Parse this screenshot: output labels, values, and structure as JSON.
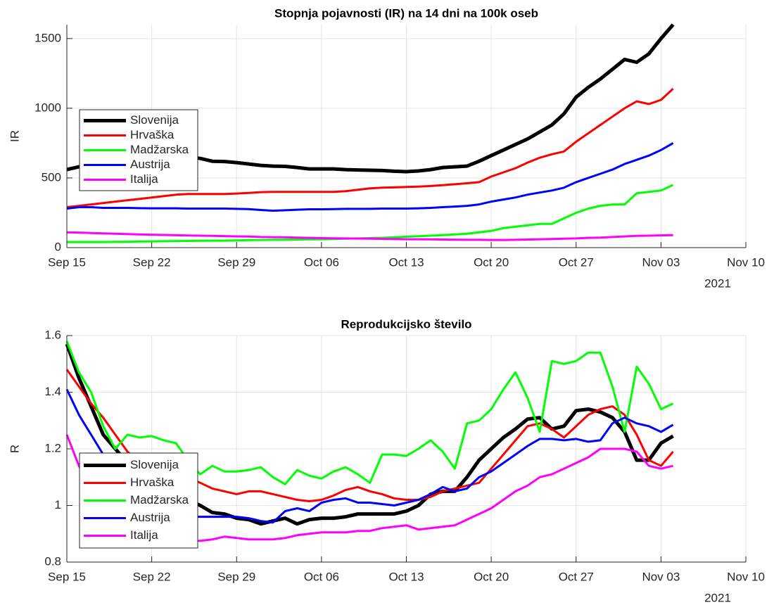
{
  "chart_data": [
    {
      "type": "line",
      "title": "Stopnja pojavnosti (IR) na 14 dni na 100k oseb",
      "y_label": "IR",
      "x_year_label": "2021",
      "x": [
        "2021-09-15",
        "2021-09-16",
        "2021-09-17",
        "2021-09-18",
        "2021-09-19",
        "2021-09-20",
        "2021-09-21",
        "2021-09-22",
        "2021-09-23",
        "2021-09-24",
        "2021-09-25",
        "2021-09-26",
        "2021-09-27",
        "2021-09-28",
        "2021-09-29",
        "2021-09-30",
        "2021-10-01",
        "2021-10-02",
        "2021-10-03",
        "2021-10-04",
        "2021-10-05",
        "2021-10-06",
        "2021-10-07",
        "2021-10-08",
        "2021-10-09",
        "2021-10-10",
        "2021-10-11",
        "2021-10-12",
        "2021-10-13",
        "2021-10-14",
        "2021-10-15",
        "2021-10-16",
        "2021-10-17",
        "2021-10-18",
        "2021-10-19",
        "2021-10-20",
        "2021-10-21",
        "2021-10-22",
        "2021-10-23",
        "2021-10-24",
        "2021-10-25",
        "2021-10-26",
        "2021-10-27",
        "2021-10-28",
        "2021-10-29",
        "2021-10-30",
        "2021-10-31",
        "2021-11-01",
        "2021-11-02",
        "2021-11-03",
        "2021-11-04"
      ],
      "xlim": [
        "2021-09-15",
        "2021-11-10"
      ],
      "xticks": [
        {
          "value": "2021-09-15",
          "label": "Sep 15"
        },
        {
          "value": "2021-09-22",
          "label": "Sep 22"
        },
        {
          "value": "2021-09-29",
          "label": "Sep 29"
        },
        {
          "value": "2021-10-06",
          "label": "Oct 06"
        },
        {
          "value": "2021-10-13",
          "label": "Oct 13"
        },
        {
          "value": "2021-10-20",
          "label": "Oct 20"
        },
        {
          "value": "2021-10-27",
          "label": "Oct 27"
        },
        {
          "value": "2021-11-03",
          "label": "Nov 03"
        },
        {
          "value": "2021-11-10",
          "label": "Nov 10"
        }
      ],
      "ylim": [
        0,
        1600
      ],
      "yticks": [
        0,
        500,
        1000,
        1500
      ],
      "grid": true,
      "legend": "west",
      "series": [
        {
          "name": "Slovenija",
          "color": "#000000",
          "line_width": 5,
          "values": [
            560,
            580,
            600,
            615,
            625,
            635,
            645,
            650,
            655,
            655,
            650,
            640,
            620,
            618,
            610,
            600,
            590,
            585,
            583,
            575,
            565,
            565,
            565,
            560,
            557,
            555,
            553,
            548,
            545,
            550,
            560,
            575,
            580,
            585,
            620,
            660,
            700,
            740,
            780,
            830,
            880,
            960,
            1080,
            1150,
            1210,
            1280,
            1350,
            1330,
            1390,
            1500,
            1600
          ]
        },
        {
          "name": "Hrvaška",
          "color": "#ff0000",
          "line_width": 3,
          "values": [
            290,
            300,
            310,
            320,
            330,
            340,
            350,
            360,
            370,
            380,
            385,
            385,
            385,
            385,
            388,
            392,
            398,
            400,
            400,
            400,
            400,
            400,
            400,
            405,
            415,
            425,
            430,
            432,
            435,
            438,
            442,
            448,
            455,
            462,
            470,
            510,
            540,
            570,
            610,
            645,
            670,
            690,
            760,
            820,
            880,
            940,
            1000,
            1050,
            1030,
            1060,
            1140
          ]
        },
        {
          "name": "Madžarska",
          "color": "#00ff00",
          "line_width": 3,
          "values": [
            40,
            40,
            40,
            40,
            42,
            42,
            44,
            45,
            46,
            47,
            48,
            49,
            50,
            50,
            52,
            54,
            55,
            56,
            57,
            58,
            59,
            60,
            62,
            64,
            66,
            68,
            70,
            74,
            78,
            82,
            86,
            90,
            95,
            100,
            110,
            120,
            140,
            150,
            160,
            170,
            170,
            210,
            250,
            280,
            300,
            310,
            310,
            390,
            400,
            410,
            450
          ]
        },
        {
          "name": "Austrija",
          "color": "#0000ff",
          "line_width": 3,
          "values": [
            280,
            290,
            290,
            285,
            285,
            285,
            283,
            282,
            282,
            282,
            280,
            280,
            280,
            280,
            278,
            276,
            270,
            265,
            268,
            272,
            275,
            275,
            276,
            278,
            278,
            278,
            280,
            280,
            280,
            282,
            285,
            290,
            295,
            300,
            310,
            330,
            345,
            360,
            380,
            395,
            410,
            430,
            470,
            500,
            530,
            560,
            600,
            630,
            660,
            700,
            750
          ]
        },
        {
          "name": "Italija",
          "color": "#ff00ff",
          "line_width": 3,
          "values": [
            110,
            108,
            105,
            102,
            100,
            97,
            95,
            93,
            91,
            89,
            87,
            86,
            85,
            83,
            81,
            79,
            76,
            75,
            74,
            72,
            70,
            68,
            67,
            66,
            65,
            64,
            63,
            62,
            60,
            60,
            59,
            58,
            57,
            56,
            56,
            55,
            55,
            56,
            58,
            60,
            62,
            64,
            66,
            70,
            72,
            76,
            80,
            85,
            86,
            88,
            90
          ]
        }
      ]
    },
    {
      "type": "line",
      "title": "Reprodukcijsko število",
      "y_label": "R",
      "x_year_label": "2021",
      "x": [
        "2021-09-15",
        "2021-09-16",
        "2021-09-17",
        "2021-09-18",
        "2021-09-19",
        "2021-09-20",
        "2021-09-21",
        "2021-09-22",
        "2021-09-23",
        "2021-09-24",
        "2021-09-25",
        "2021-09-26",
        "2021-09-27",
        "2021-09-28",
        "2021-09-29",
        "2021-09-30",
        "2021-10-01",
        "2021-10-02",
        "2021-10-03",
        "2021-10-04",
        "2021-10-05",
        "2021-10-06",
        "2021-10-07",
        "2021-10-08",
        "2021-10-09",
        "2021-10-10",
        "2021-10-11",
        "2021-10-12",
        "2021-10-13",
        "2021-10-14",
        "2021-10-15",
        "2021-10-16",
        "2021-10-17",
        "2021-10-18",
        "2021-10-19",
        "2021-10-20",
        "2021-10-21",
        "2021-10-22",
        "2021-10-23",
        "2021-10-24",
        "2021-10-25",
        "2021-10-26",
        "2021-10-27",
        "2021-10-28",
        "2021-10-29",
        "2021-10-30",
        "2021-10-31",
        "2021-11-01",
        "2021-11-02",
        "2021-11-03",
        "2021-11-04"
      ],
      "xlim": [
        "2021-09-15",
        "2021-11-10"
      ],
      "xticks": [
        {
          "value": "2021-09-15",
          "label": "Sep 15"
        },
        {
          "value": "2021-09-22",
          "label": "Sep 22"
        },
        {
          "value": "2021-09-29",
          "label": "Sep 29"
        },
        {
          "value": "2021-10-06",
          "label": "Oct 06"
        },
        {
          "value": "2021-10-13",
          "label": "Oct 13"
        },
        {
          "value": "2021-10-20",
          "label": "Oct 20"
        },
        {
          "value": "2021-10-27",
          "label": "Oct 27"
        },
        {
          "value": "2021-11-03",
          "label": "Nov 03"
        },
        {
          "value": "2021-11-10",
          "label": "Nov 10"
        }
      ],
      "ylim": [
        0.8,
        1.6
      ],
      "yticks": [
        0.8,
        1,
        1.2,
        1.4,
        1.6
      ],
      "grid": true,
      "legend": "southwest",
      "series": [
        {
          "name": "Slovenija",
          "color": "#000000",
          "line_width": 5,
          "values": [
            1.57,
            1.45,
            1.35,
            1.25,
            1.2,
            1.15,
            1.12,
            1.1,
            1.07,
            1.04,
            1.02,
            1.0,
            0.975,
            0.97,
            0.955,
            0.95,
            0.935,
            0.945,
            0.955,
            0.935,
            0.95,
            0.955,
            0.955,
            0.96,
            0.97,
            0.97,
            0.97,
            0.97,
            0.98,
            1.0,
            1.04,
            1.05,
            1.05,
            1.1,
            1.16,
            1.2,
            1.24,
            1.27,
            1.305,
            1.31,
            1.27,
            1.28,
            1.335,
            1.34,
            1.33,
            1.31,
            1.26,
            1.16,
            1.16,
            1.22,
            1.245
          ]
        },
        {
          "name": "Hrvaška",
          "color": "#ff0000",
          "line_width": 3,
          "values": [
            1.48,
            1.42,
            1.36,
            1.31,
            1.25,
            1.19,
            1.15,
            1.12,
            1.11,
            1.1,
            1.1,
            1.08,
            1.06,
            1.05,
            1.04,
            1.05,
            1.05,
            1.04,
            1.03,
            1.02,
            1.015,
            1.02,
            1.035,
            1.055,
            1.065,
            1.05,
            1.04,
            1.025,
            1.02,
            1.02,
            1.03,
            1.05,
            1.06,
            1.07,
            1.08,
            1.13,
            1.18,
            1.23,
            1.28,
            1.29,
            1.27,
            1.24,
            1.28,
            1.32,
            1.34,
            1.35,
            1.32,
            1.25,
            1.16,
            1.14,
            1.19
          ]
        },
        {
          "name": "Madžarska",
          "color": "#00ff00",
          "line_width": 3,
          "values": [
            1.58,
            1.47,
            1.4,
            1.28,
            1.2,
            1.25,
            1.24,
            1.245,
            1.23,
            1.22,
            1.16,
            1.11,
            1.14,
            1.12,
            1.12,
            1.125,
            1.135,
            1.1,
            1.075,
            1.125,
            1.105,
            1.095,
            1.12,
            1.135,
            1.11,
            1.08,
            1.18,
            1.18,
            1.175,
            1.2,
            1.23,
            1.19,
            1.13,
            1.29,
            1.3,
            1.34,
            1.41,
            1.47,
            1.38,
            1.26,
            1.51,
            1.5,
            1.51,
            1.54,
            1.54,
            1.42,
            1.26,
            1.49,
            1.43,
            1.34,
            1.36
          ]
        },
        {
          "name": "Austrija",
          "color": "#0000ff",
          "line_width": 3,
          "values": [
            1.41,
            1.32,
            1.25,
            1.18,
            1.12,
            1.07,
            1.03,
            1.0,
            0.98,
            0.97,
            0.96,
            0.96,
            0.96,
            0.96,
            0.96,
            0.955,
            0.945,
            0.94,
            0.98,
            0.99,
            0.98,
            1.01,
            1.02,
            1.025,
            1.01,
            1.01,
            1.005,
            1.0,
            1.01,
            1.02,
            1.04,
            1.065,
            1.05,
            1.06,
            1.1,
            1.12,
            1.15,
            1.18,
            1.21,
            1.235,
            1.235,
            1.23,
            1.235,
            1.225,
            1.23,
            1.29,
            1.31,
            1.29,
            1.28,
            1.26,
            1.285
          ]
        },
        {
          "name": "Italija",
          "color": "#ff00ff",
          "line_width": 3,
          "values": [
            1.25,
            1.14,
            1.05,
            0.98,
            0.94,
            0.92,
            0.9,
            0.89,
            0.88,
            0.88,
            0.875,
            0.875,
            0.88,
            0.89,
            0.885,
            0.88,
            0.88,
            0.88,
            0.885,
            0.895,
            0.9,
            0.905,
            0.905,
            0.905,
            0.91,
            0.91,
            0.92,
            0.925,
            0.93,
            0.915,
            0.92,
            0.925,
            0.93,
            0.95,
            0.97,
            0.99,
            1.02,
            1.05,
            1.07,
            1.1,
            1.11,
            1.13,
            1.15,
            1.17,
            1.2,
            1.2,
            1.2,
            1.19,
            1.14,
            1.13,
            1.14
          ]
        }
      ]
    }
  ]
}
